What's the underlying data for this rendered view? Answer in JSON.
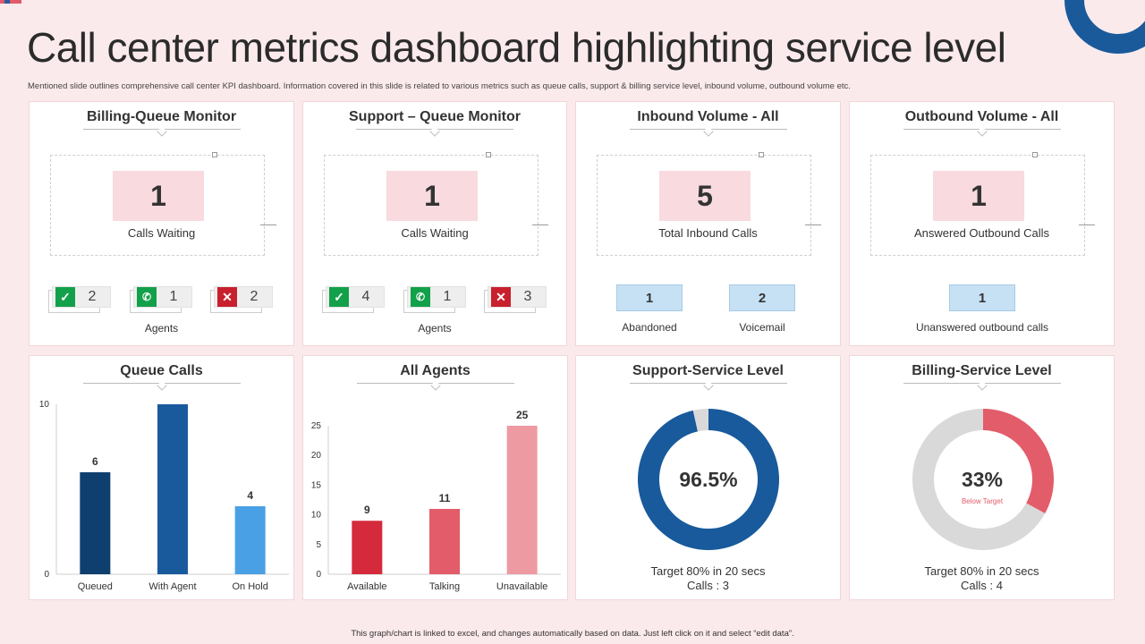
{
  "title": "Call center metrics dashboard highlighting service level",
  "subtitle": "Mentioned slide outlines comprehensive call center KPI dashboard. Information covered in this slide is related to various metrics such as queue calls, support & billing  service level, inbound volume, outbound volume etc.",
  "footer": "This graph/chart is linked to excel, and changes automatically based on data. Just left click on it and select “edit data”.",
  "colors": {
    "accent_red": "#e05a6a",
    "dark_blue": "#1b5a9a",
    "light_pink": "#f8dadf"
  },
  "billing_queue": {
    "title": "Billing-Queue Monitor",
    "value": "1",
    "label": "Calls Waiting",
    "agents": [
      {
        "icon": "check-icon",
        "value": "2"
      },
      {
        "icon": "phone-icon",
        "value": "1"
      },
      {
        "icon": "x-icon",
        "value": "2"
      }
    ],
    "agents_label": "Agents"
  },
  "support_queue": {
    "title": "Support – Queue Monitor",
    "value": "1",
    "label": "Calls Waiting",
    "agents": [
      {
        "icon": "check-icon",
        "value": "4"
      },
      {
        "icon": "phone-icon",
        "value": "1"
      },
      {
        "icon": "x-icon",
        "value": "3"
      }
    ],
    "agents_label": "Agents"
  },
  "inbound": {
    "title": "Inbound Volume - All",
    "value": "5",
    "label": "Total Inbound  Calls",
    "abandoned_value": "1",
    "abandoned_label": "Abandoned",
    "voicemail_value": "2",
    "voicemail_label": "Voicemail"
  },
  "outbound": {
    "title": "Outbound Volume - All",
    "value": "1",
    "label": "Answered  Outbound Calls",
    "unanswered_value": "1",
    "unanswered_label": "Unanswered outbound calls"
  },
  "queue_calls_title": "Queue Calls",
  "all_agents_title": "All Agents",
  "support_service": {
    "title": "Support-Service Level",
    "percent_label": "96.5%",
    "target": "Target  80%  in 20 secs",
    "calls": "Calls : 3"
  },
  "billing_service": {
    "title": "Billing-Service Level",
    "percent_label": "33%",
    "status": "Below Target",
    "target": "Target  80%  in 20 secs",
    "calls": "Calls : 4"
  },
  "chart_data": [
    {
      "type": "bar",
      "title": "Queue Calls",
      "categories": [
        "Queued",
        "With Agent",
        "On Hold"
      ],
      "values": [
        6,
        10,
        4
      ],
      "data_labels": [
        "6",
        "",
        "4"
      ],
      "colors": [
        "#0f3f6e",
        "#185a9c",
        "#4aa0e4"
      ],
      "ylim": [
        0,
        10
      ],
      "yticks": [
        0,
        10
      ]
    },
    {
      "type": "bar",
      "title": "All Agents",
      "categories": [
        "Available",
        "Talking",
        "Unavailable"
      ],
      "values": [
        9,
        11,
        25
      ],
      "data_labels": [
        "9",
        "11",
        "25"
      ],
      "colors": [
        "#d42a3c",
        "#e25c6a",
        "#ee9aa3"
      ],
      "ylim": [
        0,
        25
      ],
      "yticks": [
        0,
        5,
        10,
        15,
        20,
        25
      ]
    },
    {
      "type": "pie",
      "title": "Support-Service Level",
      "values": [
        96.5,
        3.5
      ],
      "colors": [
        "#185a9c",
        "#d9d9d9"
      ]
    },
    {
      "type": "pie",
      "title": "Billing-Service Level",
      "values": [
        33,
        67
      ],
      "colors": [
        "#e25c6a",
        "#d9d9d9"
      ]
    }
  ]
}
